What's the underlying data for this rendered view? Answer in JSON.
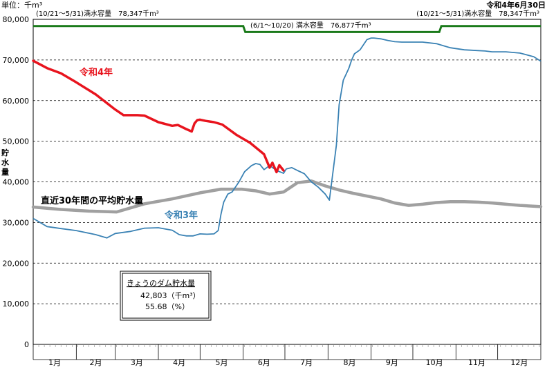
{
  "header": {
    "unit_label": "単位：千m³",
    "date_label": "令和4年6月30日"
  },
  "capacity_labels": {
    "left": "(10/21～5/31)満水容量　78,347千m³",
    "middle": "(6/1～10/20) 満水容量　76,877千m³",
    "right": "(10/21～5/31)満水容量　78,347千m³"
  },
  "info_box": {
    "title": "きょうのダム貯水量",
    "volume": "42,803（千m³）",
    "percent": "55.68（%）"
  },
  "colors": {
    "r4": "#e8141e",
    "r3": "#3a82b4",
    "avg": "#a0a0a0",
    "capacity": "#1a7a1a"
  },
  "chart_data": {
    "type": "line",
    "title": "",
    "ylabel": "貯水量",
    "ylim": [
      0,
      80000
    ],
    "yticks": [
      0,
      10000,
      20000,
      30000,
      40000,
      50000,
      60000,
      70000,
      80000
    ],
    "ytick_labels": [
      "0",
      "10,000",
      "20,000",
      "30,000",
      "40,000",
      "50,000",
      "60,000",
      "70,000",
      "80,000"
    ],
    "xlim": [
      0,
      365
    ],
    "month_labels": [
      "1月",
      "2月",
      "3月",
      "4月",
      "5月",
      "6月",
      "7月",
      "8月",
      "9月",
      "10月",
      "11月",
      "12月"
    ],
    "grid": true,
    "series": [
      {
        "name": "令和4年",
        "label": "令和4年",
        "color": "#e8141e",
        "x": [
          0,
          10,
          20,
          31,
          45,
          59,
          65,
          75,
          80,
          90,
          100,
          104,
          110,
          114,
          116,
          118,
          120,
          124,
          130,
          136,
          146,
          156,
          166,
          170,
          172,
          175,
          177,
          180
        ],
        "y": [
          69800,
          68000,
          66700,
          64500,
          61500,
          57800,
          56400,
          56400,
          56300,
          54700,
          53800,
          54000,
          53000,
          52400,
          54400,
          55200,
          55300,
          55000,
          54700,
          54100,
          51600,
          49600,
          46800,
          43500,
          44700,
          42400,
          44100,
          42800
        ]
      },
      {
        "name": "令和3年",
        "label": "令和3年",
        "color": "#3a82b4",
        "x": [
          0,
          10,
          20,
          31,
          45,
          53,
          59,
          70,
          80,
          90,
          100,
          105,
          110,
          115,
          120,
          125,
          130,
          133,
          135,
          137,
          140,
          143,
          148,
          152,
          157,
          160,
          163,
          166,
          170,
          175,
          180,
          182,
          186,
          190,
          195,
          200,
          205,
          210,
          213,
          218,
          220,
          223,
          225,
          227,
          229,
          231,
          235,
          240,
          243,
          245,
          250,
          255,
          260,
          265,
          270,
          280,
          290,
          300,
          310,
          320,
          325,
          330,
          340,
          350,
          360,
          365
        ],
        "y": [
          31000,
          29000,
          28500,
          28000,
          27000,
          26200,
          27300,
          27800,
          28600,
          28700,
          28100,
          27000,
          26700,
          26700,
          27200,
          27100,
          27200,
          28000,
          32000,
          35000,
          37000,
          37500,
          40000,
          42500,
          44000,
          44500,
          44300,
          43000,
          44000,
          42800,
          42100,
          43200,
          43500,
          42800,
          42000,
          40000,
          38700,
          37000,
          35500,
          49000,
          59000,
          65000,
          66500,
          68000,
          70000,
          71500,
          72500,
          75000,
          75400,
          75400,
          75200,
          74800,
          74500,
          74400,
          74400,
          74400,
          74000,
          73000,
          72500,
          72300,
          72200,
          72000,
          72000,
          71700,
          70800,
          69700
        ]
      },
      {
        "name": "直近30年間の平均貯水量",
        "label": "直近30年間の平均貯水量",
        "color": "#a0a0a0",
        "x": [
          0,
          20,
          40,
          60,
          80,
          100,
          120,
          135,
          150,
          160,
          170,
          180,
          190,
          200,
          210,
          220,
          230,
          240,
          250,
          260,
          270,
          280,
          290,
          300,
          310,
          320,
          330,
          340,
          350,
          365
        ],
        "y": [
          33800,
          33200,
          32800,
          32600,
          34600,
          35800,
          37300,
          38200,
          38200,
          37800,
          37000,
          37500,
          39800,
          40200,
          39000,
          38000,
          37200,
          36500,
          35800,
          34800,
          34200,
          34500,
          34900,
          35100,
          35100,
          35000,
          34800,
          34500,
          34200,
          33900
        ]
      },
      {
        "name": "満水容量",
        "color": "#1a7a1a",
        "x": [
          0,
          151,
          151,
          152.5,
          292,
          293.5,
          365
        ],
        "y": [
          78347,
          78347,
          78347,
          76877,
          76877,
          78347,
          78347
        ]
      }
    ]
  }
}
